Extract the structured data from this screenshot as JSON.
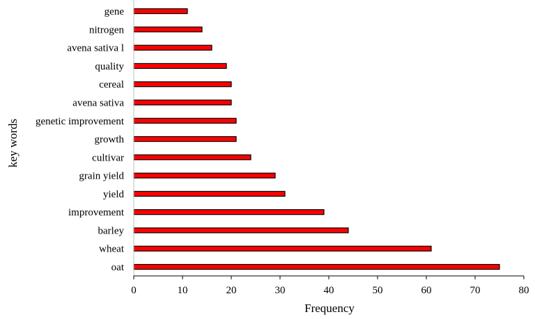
{
  "chart_data": {
    "type": "bar",
    "orientation": "horizontal",
    "categories": [
      "oat",
      "wheat",
      "barley",
      "improvement",
      "yield",
      "grain yield",
      "cultivar",
      "growth",
      "genetic improvement",
      "avena sativa",
      "cereal",
      "quality",
      "avena sativa l",
      "nitrogen",
      "gene"
    ],
    "values": [
      75,
      61,
      44,
      39,
      31,
      29,
      24,
      21,
      21,
      20,
      20,
      19,
      16,
      14,
      11
    ],
    "title": "",
    "xlabel": "Frequency",
    "ylabel": "key words",
    "xlim": [
      0,
      80
    ],
    "xticks": [
      "0",
      "10",
      "20",
      "30",
      "40",
      "50",
      "60",
      "70",
      "80"
    ],
    "grid": false,
    "legend": "none",
    "bar_color": "#ff0000",
    "bar_edge_color": "#000000"
  }
}
